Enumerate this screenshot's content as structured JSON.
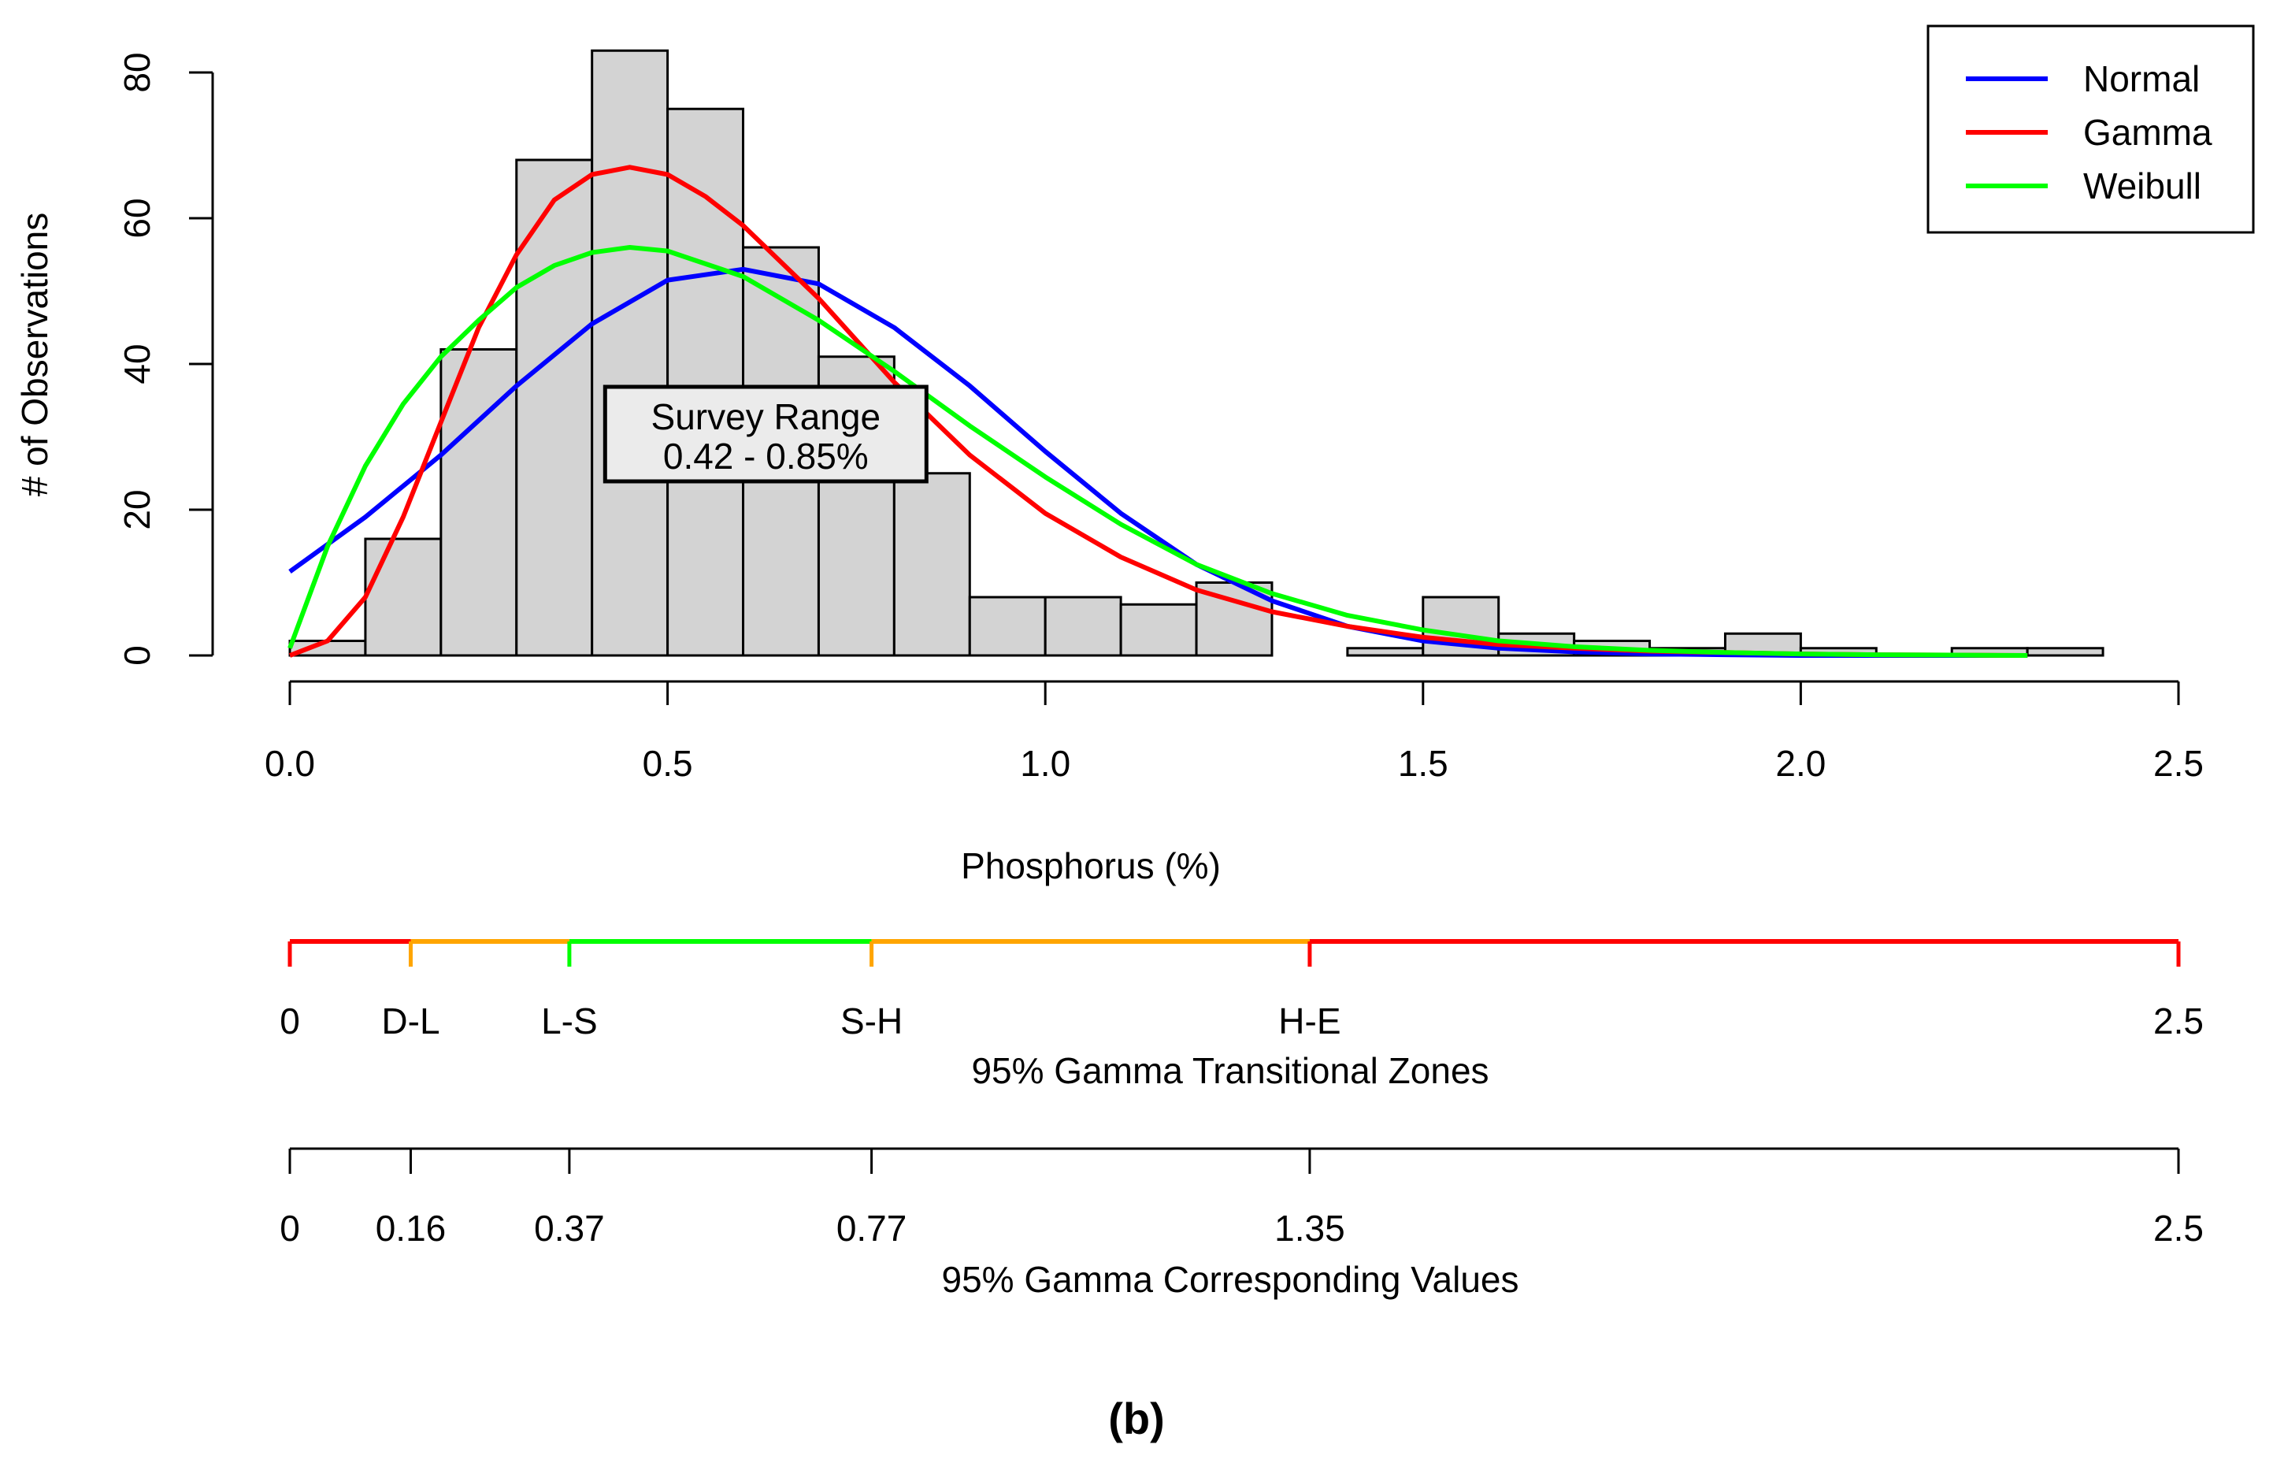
{
  "chart_data": {
    "type": "histogram",
    "panel_label": "(b)",
    "xlabel": "Phosphorus (%)",
    "ylabel": "# of Observations",
    "xlim": [
      0,
      2.5
    ],
    "ylim": [
      0,
      80
    ],
    "x_ticks": [
      {
        "value": 0.0,
        "label": "0.0"
      },
      {
        "value": 0.5,
        "label": "0.5"
      },
      {
        "value": 1.0,
        "label": "1.0"
      },
      {
        "value": 1.5,
        "label": "1.5"
      },
      {
        "value": 2.0,
        "label": "2.0"
      },
      {
        "value": 2.5,
        "label": "2.5"
      }
    ],
    "y_ticks": [
      {
        "value": 0,
        "label": "0"
      },
      {
        "value": 20,
        "label": "20"
      },
      {
        "value": 40,
        "label": "40"
      },
      {
        "value": 60,
        "label": "60"
      },
      {
        "value": 80,
        "label": "80"
      }
    ],
    "bins": [
      {
        "start": 0.0,
        "end": 0.1,
        "count": 2
      },
      {
        "start": 0.1,
        "end": 0.2,
        "count": 16
      },
      {
        "start": 0.2,
        "end": 0.3,
        "count": 42
      },
      {
        "start": 0.3,
        "end": 0.4,
        "count": 68
      },
      {
        "start": 0.4,
        "end": 0.5,
        "count": 83
      },
      {
        "start": 0.5,
        "end": 0.6,
        "count": 75
      },
      {
        "start": 0.6,
        "end": 0.7,
        "count": 56
      },
      {
        "start": 0.7,
        "end": 0.8,
        "count": 41
      },
      {
        "start": 0.8,
        "end": 0.9,
        "count": 25
      },
      {
        "start": 0.9,
        "end": 1.0,
        "count": 8
      },
      {
        "start": 1.0,
        "end": 1.1,
        "count": 8
      },
      {
        "start": 1.1,
        "end": 1.2,
        "count": 7
      },
      {
        "start": 1.2,
        "end": 1.3,
        "count": 10
      },
      {
        "start": 1.3,
        "end": 1.4,
        "count": 0
      },
      {
        "start": 1.4,
        "end": 1.5,
        "count": 1
      },
      {
        "start": 1.5,
        "end": 1.6,
        "count": 8
      },
      {
        "start": 1.6,
        "end": 1.7,
        "count": 3
      },
      {
        "start": 1.7,
        "end": 1.8,
        "count": 2
      },
      {
        "start": 1.8,
        "end": 1.9,
        "count": 1
      },
      {
        "start": 1.9,
        "end": 2.0,
        "count": 3
      },
      {
        "start": 2.0,
        "end": 2.1,
        "count": 1
      },
      {
        "start": 2.1,
        "end": 2.2,
        "count": 0
      },
      {
        "start": 2.2,
        "end": 2.3,
        "count": 1
      },
      {
        "start": 2.3,
        "end": 2.4,
        "count": 1
      }
    ],
    "series": [
      {
        "name": "Normal",
        "color": "#0000ff",
        "x": [
          0.0,
          0.1,
          0.2,
          0.3,
          0.4,
          0.5,
          0.6,
          0.7,
          0.8,
          0.9,
          1.0,
          1.1,
          1.2,
          1.3,
          1.4,
          1.5,
          1.6,
          1.7,
          1.8,
          1.9,
          2.0,
          2.1,
          2.2,
          2.3
        ],
        "y": [
          11.5,
          19,
          27.5,
          37,
          45.5,
          51.5,
          53,
          51,
          45,
          37,
          28,
          19.5,
          12.5,
          7.5,
          4,
          2,
          1,
          0.5,
          0.2,
          0.1,
          0,
          0,
          0,
          0
        ]
      },
      {
        "name": "Gamma",
        "color": "#ff0000",
        "x": [
          0.0,
          0.05,
          0.1,
          0.15,
          0.2,
          0.25,
          0.3,
          0.35,
          0.4,
          0.45,
          0.5,
          0.55,
          0.6,
          0.7,
          0.8,
          0.9,
          1.0,
          1.1,
          1.2,
          1.3,
          1.4,
          1.5,
          1.6,
          1.7,
          1.8,
          1.9,
          2.0,
          2.1,
          2.2,
          2.3
        ],
        "y": [
          0,
          2,
          8,
          19,
          32,
          45,
          55,
          62.5,
          66,
          67,
          66,
          63,
          59,
          49,
          37.5,
          27.5,
          19.5,
          13.5,
          9,
          6,
          4,
          2.5,
          1.5,
          1,
          0.6,
          0.4,
          0.2,
          0.1,
          0.05,
          0
        ],
        "x_start_note": "starts at 0.02"
      },
      {
        "name": "Weibull",
        "color": "#00ff00",
        "x": [
          0.0,
          0.05,
          0.1,
          0.15,
          0.2,
          0.25,
          0.3,
          0.35,
          0.4,
          0.45,
          0.5,
          0.6,
          0.7,
          0.8,
          0.9,
          1.0,
          1.1,
          1.2,
          1.3,
          1.4,
          1.5,
          1.6,
          1.7,
          1.8,
          1.9,
          2.0,
          2.1,
          2.2,
          2.3
        ],
        "y": [
          1,
          15,
          26,
          34.5,
          41,
          46,
          50.5,
          53.5,
          55.3,
          56,
          55.5,
          52,
          46,
          39,
          31.5,
          24.5,
          18,
          12.5,
          8.5,
          5.5,
          3.5,
          2,
          1.2,
          0.7,
          0.4,
          0.2,
          0.1,
          0.05,
          0
        ]
      }
    ],
    "annotation": {
      "line1": "Survey Range",
      "line2": "0.42 - 0.85%",
      "x_center": 0.63,
      "y_center": 28
    },
    "legend_position": "top-right",
    "zones": {
      "title": "95% Gamma Transitional Zones",
      "points": [
        {
          "value": 0,
          "label": "0"
        },
        {
          "value": 0.16,
          "label": "D-L"
        },
        {
          "value": 0.37,
          "label": "L-S"
        },
        {
          "value": 0.77,
          "label": "S-H"
        },
        {
          "value": 1.35,
          "label": "H-E"
        },
        {
          "value": 2.5,
          "label": "2.5"
        }
      ],
      "segments": [
        {
          "from": 0,
          "to": 0.16,
          "color": "#ff0000"
        },
        {
          "from": 0.16,
          "to": 0.37,
          "color": "#ffa500"
        },
        {
          "from": 0.37,
          "to": 0.77,
          "color": "#00ff00"
        },
        {
          "from": 0.77,
          "to": 1.35,
          "color": "#ffa500"
        },
        {
          "from": 1.35,
          "to": 2.5,
          "color": "#ff0000"
        }
      ]
    },
    "values_axis": {
      "title": "95% Gamma Corresponding Values",
      "points": [
        {
          "value": 0,
          "label": "0"
        },
        {
          "value": 0.16,
          "label": "0.16"
        },
        {
          "value": 0.37,
          "label": "0.37"
        },
        {
          "value": 0.77,
          "label": "0.77"
        },
        {
          "value": 1.35,
          "label": "1.35"
        },
        {
          "value": 2.5,
          "label": "2.5"
        }
      ]
    }
  }
}
